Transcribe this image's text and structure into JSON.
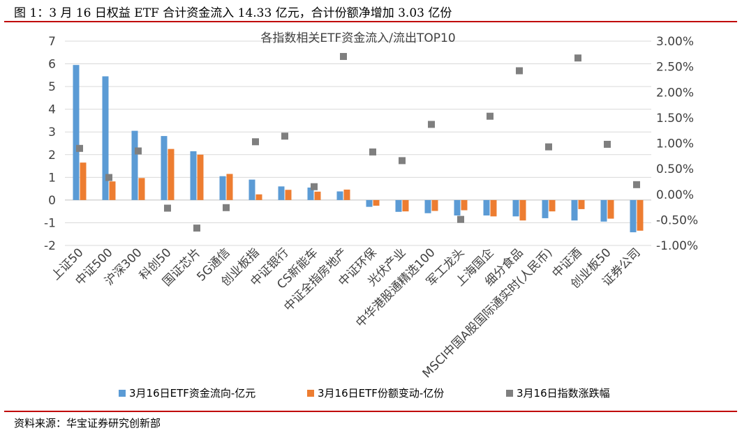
{
  "figure_title": "图 1：3 月 16 日权益 ETF 合计资金流入 14.33 亿元，合计份额净增加 3.03 亿份",
  "source": "资料来源：华宝证券研究创新部",
  "chart_data": {
    "type": "bar",
    "title": "各指数相关ETF资金流入/流出TOP10",
    "categories": [
      "上证50",
      "中证500",
      "沪深300",
      "科创50",
      "国证芯片",
      "5G通信",
      "创业板指",
      "中证银行",
      "CS新能车",
      "中证全指房地产",
      "中证环保",
      "光伏产业",
      "中华港股通精选100",
      "军工龙头",
      "上海国企",
      "细分食品",
      "MSCI中国A股国际通实时(人民币)",
      "中证酒",
      "创业板50",
      "证券公司"
    ],
    "series": [
      {
        "name": "3月16日ETF资金流向-亿元",
        "axis": "left",
        "kind": "bar",
        "color": "#5b9bd5",
        "values": [
          5.95,
          5.45,
          3.05,
          2.82,
          2.15,
          1.05,
          0.9,
          0.6,
          0.55,
          0.38,
          -0.3,
          -0.52,
          -0.58,
          -0.68,
          -0.68,
          -0.72,
          -0.8,
          -0.9,
          -0.95,
          -1.42
        ]
      },
      {
        "name": "3月16日ETF份额变动-亿份",
        "axis": "left",
        "kind": "bar",
        "color": "#ed7d31",
        "values": [
          1.65,
          0.82,
          0.97,
          2.25,
          2.0,
          1.15,
          0.25,
          0.45,
          0.37,
          0.46,
          -0.25,
          -0.5,
          -0.48,
          -0.45,
          -0.72,
          -0.9,
          -0.5,
          -0.4,
          -0.82,
          -1.35
        ]
      },
      {
        "name": "3月16日指数涨跌幅",
        "axis": "right",
        "kind": "scatter",
        "color": "#7f7f7f",
        "values": [
          0.9,
          0.33,
          0.85,
          -0.27,
          -0.66,
          -0.26,
          1.03,
          1.14,
          0.15,
          2.7,
          0.83,
          0.66,
          1.37,
          -0.49,
          1.53,
          2.42,
          0.93,
          2.67,
          0.98,
          0.19
        ]
      }
    ],
    "ylim_left": [
      -2,
      7
    ],
    "ylim_right": [
      -1,
      3
    ],
    "yticks_left": [
      "7",
      "6",
      "5",
      "4",
      "3",
      "2",
      "1",
      "0",
      "-1",
      "-2"
    ],
    "yticks_right": [
      "3.00%",
      "2.50%",
      "2.00%",
      "1.50%",
      "1.00%",
      "0.50%",
      "0.00%",
      "-0.50%",
      "-1.00%"
    ],
    "grid": true,
    "legend_position": "bottom"
  }
}
